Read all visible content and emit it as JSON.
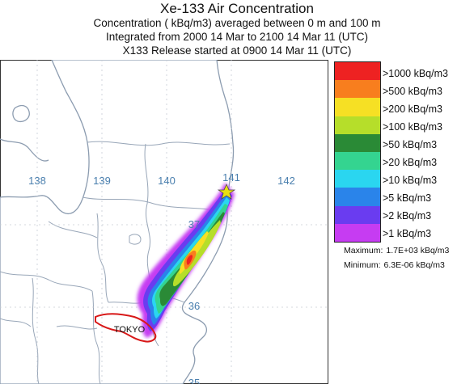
{
  "header": {
    "title": "Xe-133 Air Concentration",
    "line1": "Concentration  ( kBq/m3) averaged between      0 m and   100 m",
    "line2": "Integrated from 2000 14 Mar to 2100 14 Mar 11 (UTC)",
    "line3": "X133 Release started at 0900 14 Mar 11 (UTC)"
  },
  "map": {
    "longitude_labels": [
      "138",
      "139",
      "140",
      "141",
      "142"
    ],
    "latitude_labels": [
      "37",
      "36",
      "35"
    ],
    "city_label": "TOKYO",
    "colors": {
      "land_border": "#8c9cb0",
      "grid_label": "#4a7fae",
      "tokyo_outline": "#d81818",
      "source_marker": "#e8e010"
    }
  },
  "legend": {
    "items": [
      {
        "label": ">1000  kBq/m3",
        "color": "#ee2222"
      },
      {
        "label": ">500  kBq/m3",
        "color": "#f87e1e"
      },
      {
        "label": ">200  kBq/m3",
        "color": "#f6e024"
      },
      {
        "label": ">100  kBq/m3",
        "color": "#b6de2a"
      },
      {
        "label": ">50  kBq/m3",
        "color": "#2a8a36"
      },
      {
        "label": ">20  kBq/m3",
        "color": "#34d490"
      },
      {
        "label": ">10  kBq/m3",
        "color": "#2ad6f0"
      },
      {
        "label": ">5  kBq/m3",
        "color": "#2a84ea"
      },
      {
        "label": ">2  kBq/m3",
        "color": "#6a3cf0"
      },
      {
        "label": ">1  kBq/m3",
        "color": "#c63cf2"
      }
    ],
    "maximum_label": "Maximum:",
    "maximum_value": "1.7E+03  kBq/m3",
    "minimum_label": "Minimum:",
    "minimum_value": "6.3E-06  kBq/m3"
  }
}
